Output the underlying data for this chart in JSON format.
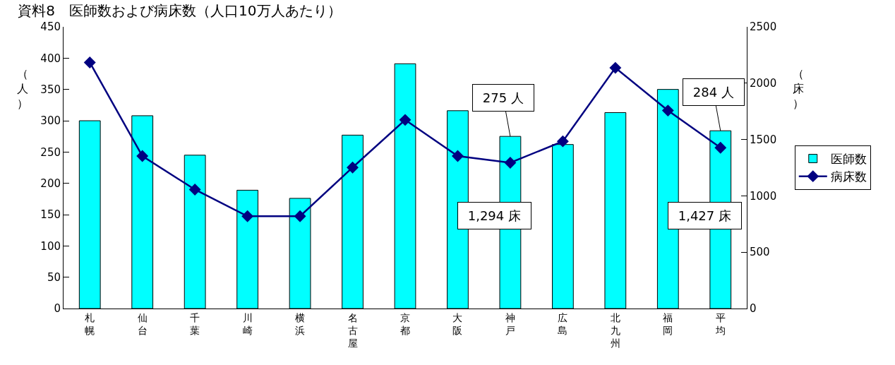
{
  "chart_data": {
    "type": "bar",
    "title": "資料8　医師数および病床数（人口10万人あたり）",
    "categories": [
      "札幌",
      "仙台",
      "千葉",
      "川崎",
      "横浜",
      "名古屋",
      "京都",
      "大阪",
      "神戸",
      "広島",
      "北九州",
      "福岡",
      "平均"
    ],
    "series": [
      {
        "name": "医師数",
        "color": "#00ffff",
        "values": [
          300,
          308,
          245,
          189,
          176,
          277,
          391,
          316,
          275,
          262,
          313,
          350,
          284
        ]
      },
      {
        "name": "病床数",
        "type": "line",
        "axis": "y2",
        "color": "#000080",
        "marker": "diamond",
        "values": [
          2184,
          1353,
          1056,
          819,
          819,
          1252,
          1674,
          1353,
          1294,
          1484,
          2136,
          1757,
          1427
        ]
      }
    ],
    "ylabel": "（人）",
    "y2label": "（床）",
    "ylim": [
      0,
      450
    ],
    "yticks": [
      0,
      50,
      100,
      150,
      200,
      250,
      300,
      350,
      400,
      450
    ],
    "y2lim": [
      0,
      2500
    ],
    "y2ticks": [
      0,
      500,
      1000,
      1500,
      2000,
      2500
    ],
    "annotations": [
      {
        "text": "275 人",
        "x": "神戸",
        "y": 275
      },
      "1,294 床",
      {
        "text": "284 人",
        "x": "平均",
        "y": 284
      },
      "1,427 床"
    ],
    "legend": "right"
  }
}
